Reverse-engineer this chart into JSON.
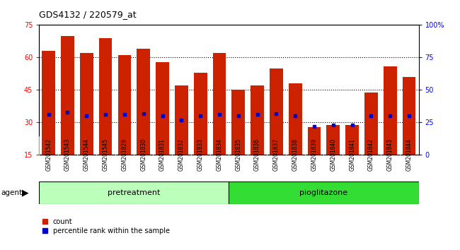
{
  "title": "GDS4132 / 220579_at",
  "samples": [
    "GSM201542",
    "GSM201543",
    "GSM201544",
    "GSM201545",
    "GSM201829",
    "GSM201830",
    "GSM201831",
    "GSM201832",
    "GSM201833",
    "GSM201834",
    "GSM201835",
    "GSM201836",
    "GSM201837",
    "GSM201838",
    "GSM201839",
    "GSM201840",
    "GSM201841",
    "GSM201842",
    "GSM201843",
    "GSM201844"
  ],
  "counts": [
    63,
    70,
    62,
    69,
    61,
    64,
    58,
    47,
    53,
    62,
    45,
    47,
    55,
    48,
    28,
    29,
    29,
    44,
    56,
    51
  ],
  "percentiles": [
    31,
    33,
    30,
    31,
    31,
    32,
    30,
    27,
    30,
    31,
    30,
    31,
    32,
    30,
    22,
    23,
    23,
    30,
    30,
    30
  ],
  "group_pretreatment": {
    "label": "pretreatment",
    "start": 0,
    "end": 9,
    "color": "#bbffbb"
  },
  "group_pioglitazone": {
    "label": "pioglitazone",
    "start": 10,
    "end": 19,
    "color": "#33dd33"
  },
  "ylim_left": [
    15,
    75
  ],
  "yticks_left": [
    15,
    30,
    45,
    60,
    75
  ],
  "ylim_right": [
    0,
    100
  ],
  "yticks_right": [
    0,
    25,
    50,
    75,
    100
  ],
  "bar_color": "#cc2200",
  "percentile_color": "#0000cc",
  "xtick_bg": "#cccccc",
  "plot_bg": "#ffffff"
}
